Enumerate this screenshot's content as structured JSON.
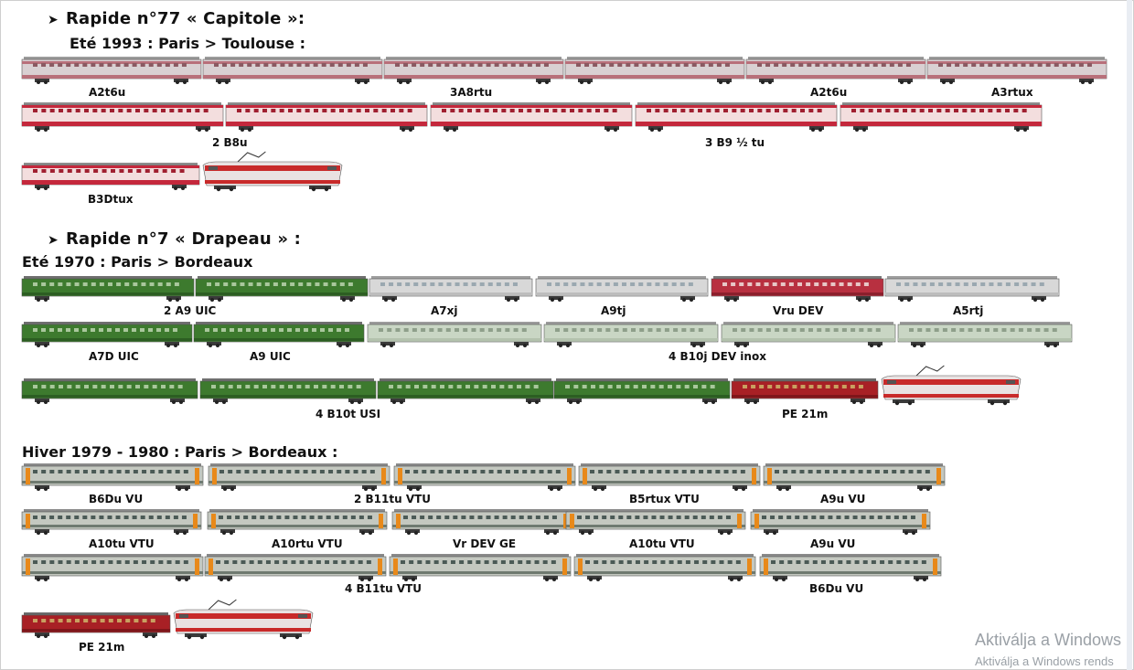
{
  "sections": [
    {
      "title": "Rapide n°77 « Capitole »:",
      "subtitle": "Eté 1993 : Paris > Toulouse :"
    },
    {
      "title": "Rapide n°7 « Drapeau » :",
      "subtitle": "Eté 1970 : Paris > Bordeaux"
    },
    {
      "title": "",
      "subtitle": "Hiver 1979 - 1980 : Paris > Bordeaux :"
    }
  ],
  "labels": [
    "A2t6u",
    "3A8rtu",
    "A2t6u",
    "A3rtux",
    "2 B8u",
    "3 B9  ½ tu",
    "B3Dtux",
    "2 A9 UIC",
    "A7xj",
    "A9tj",
    "Vru DEV",
    "A5rtj",
    "A7D UIC",
    "A9 UIC",
    "4 B10j DEV inox",
    "4 B10t USI",
    "PE 21m",
    "B6Du VU",
    "2 B11tu VTU",
    "B5rtux VTU",
    "A9u VU",
    "A10tu VTU",
    "A10rtu VTU",
    "Vr DEV GE",
    "A10tu VTU",
    "A9u VU",
    "4 B11tu VTU",
    "B6Du VU",
    "PE 21m"
  ],
  "car_colors": {
    "capitole": "#b8707a",
    "capitole_body": "#d9d0d2",
    "grill_red": "#c4283c",
    "uic_green": "#3d7a2e",
    "devinox": "#d8d8d8",
    "vtu_body": "#c4c8c0",
    "vtu_orange": "#e8891a",
    "loco_red": "#c82a2a",
    "pe_red": "#a82025"
  },
  "watermark": {
    "line1": "Aktiválja a Windows",
    "line2": "Aktiválja a Windows rends"
  }
}
